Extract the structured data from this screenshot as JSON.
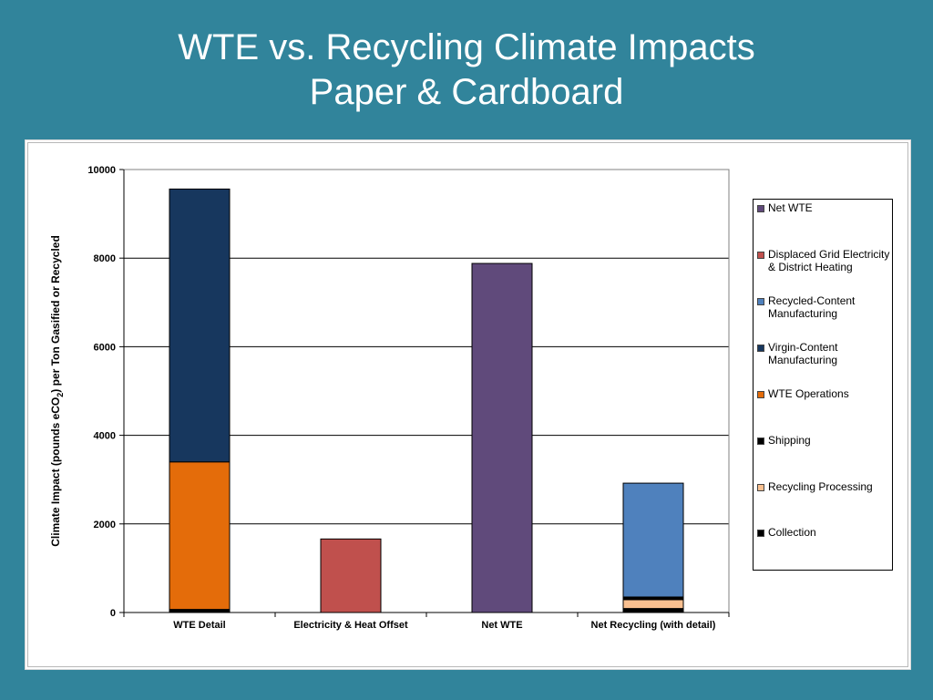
{
  "slide": {
    "title_line1": "WTE vs. Recycling Climate Impacts",
    "title_line2": "Paper & Cardboard"
  },
  "colors": {
    "background": "#31849b",
    "net_wte": "#604a7b",
    "displaced_grid": "#c0504d",
    "recycled_content": "#4f81bd",
    "virgin_content": "#17375e",
    "wte_operations": "#e46c0a",
    "shipping": "#000000",
    "recycling_processing": "#fac090",
    "collection": "#000000"
  },
  "chart_data": {
    "type": "bar",
    "stacked": true,
    "categories": [
      "WTE Detail",
      "Electricity & Heat Offset",
      "Net WTE",
      "Net Recycling (with detail)"
    ],
    "ylabel": "Climate Impact (pounds eCO2) per Ton Gasified or  Recycled",
    "ylabel_parts": [
      "Climate Impact (pounds eCO",
      "2",
      ") per Ton Gasified or  Recycled"
    ],
    "ylim": [
      0,
      10000
    ],
    "yticks": [
      0,
      2000,
      4000,
      6000,
      8000,
      10000
    ],
    "grid": true,
    "legend_position": "right",
    "series": [
      {
        "name": "Collection",
        "color": "#000000",
        "values": [
          70,
          0,
          0,
          90
        ]
      },
      {
        "name": "Recycling Processing",
        "color": "#fac090",
        "values": [
          0,
          0,
          0,
          200
        ]
      },
      {
        "name": "Shipping",
        "color": "#000000",
        "values": [
          0,
          0,
          0,
          60
        ]
      },
      {
        "name": "WTE Operations",
        "color": "#e46c0a",
        "values": [
          3330,
          0,
          0,
          0
        ]
      },
      {
        "name": "Virgin-Content Manufacturing",
        "color": "#17375e",
        "values": [
          6160,
          0,
          0,
          0
        ]
      },
      {
        "name": "Recycled-Content Manufacturing",
        "color": "#4f81bd",
        "values": [
          0,
          0,
          0,
          2570
        ]
      },
      {
        "name": "Displaced Grid Electricity & District Heating",
        "color": "#c0504d",
        "values": [
          0,
          1660,
          0,
          0
        ]
      },
      {
        "name": "Net WTE",
        "color": "#604a7b",
        "values": [
          0,
          0,
          7880,
          0
        ]
      }
    ],
    "legend": [
      {
        "label": "Net WTE",
        "color": "#604a7b"
      },
      {
        "label": "Displaced Grid Electricity & District Heating",
        "color": "#c0504d"
      },
      {
        "label": "Recycled-Content Manufacturing",
        "color": "#4f81bd"
      },
      {
        "label": "Virgin-Content Manufacturing",
        "color": "#17375e"
      },
      {
        "label": "WTE Operations",
        "color": "#e46c0a"
      },
      {
        "label": "Shipping",
        "color": "#000000"
      },
      {
        "label": "Recycling Processing",
        "color": "#fac090"
      },
      {
        "label": "Collection",
        "color": "#000000"
      }
    ]
  }
}
